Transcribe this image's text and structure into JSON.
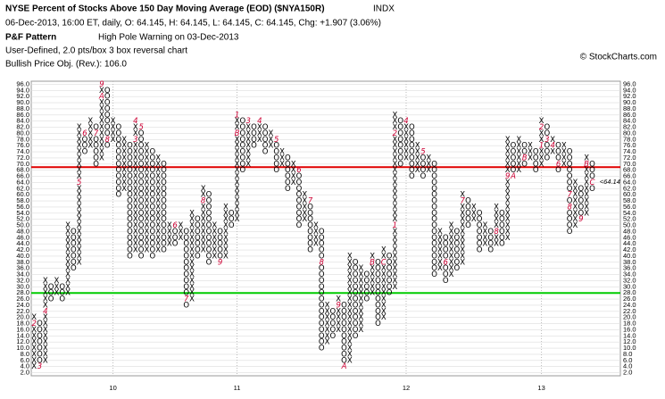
{
  "chart_data": {
    "type": "point-and-figure",
    "title": "NYSE Percent of Stocks Above 150 Day Moving Average (EOD) ($NYA150R)",
    "exchange": "INDX",
    "quote": "06-Dec-2013, 16:00 ET, daily, O: 64.145, H: 64.145, L: 64.145, C: 64.145, Chg: +1.907 (3.06%)",
    "pattern_label": "P&F Pattern",
    "pattern": "High Pole Warning on 03-Dec-2013",
    "settings": "User-Defined, 2.0 pts/box 3 box reversal chart",
    "objective": "Bullish Price Obj. (Rev.): 106.0",
    "watermark": "© StockCharts.com",
    "box_size": 2,
    "x_color": "#000000",
    "o_color": "#000000",
    "mark_color": "#cc0033",
    "ylim": [
      1,
      97
    ],
    "xlim": [
      -0.5,
      104
    ],
    "yticks": [
      {
        "value": 2,
        "label": "2.0"
      },
      {
        "value": 4,
        "label": "4.0"
      },
      {
        "value": 6,
        "label": "6.0"
      },
      {
        "value": 8,
        "label": "8.0"
      },
      {
        "value": 10,
        "label": "10.0"
      },
      {
        "value": 12,
        "label": "12.0"
      },
      {
        "value": 14,
        "label": "14.0"
      },
      {
        "value": 16,
        "label": "16.0"
      },
      {
        "value": 18,
        "label": "18.0"
      },
      {
        "value": 20,
        "label": "20.0"
      },
      {
        "value": 22,
        "label": "22.0"
      },
      {
        "value": 24,
        "label": "24.0"
      },
      {
        "value": 26,
        "label": "26.0"
      },
      {
        "value": 28,
        "label": "28.0"
      },
      {
        "value": 30,
        "label": "30.0"
      },
      {
        "value": 32,
        "label": "32.0"
      },
      {
        "value": 34,
        "label": "34.0"
      },
      {
        "value": 36,
        "label": "36.0"
      },
      {
        "value": 38,
        "label": "38.0"
      },
      {
        "value": 40,
        "label": "40.0"
      },
      {
        "value": 42,
        "label": "42.0"
      },
      {
        "value": 44,
        "label": "44.0"
      },
      {
        "value": 46,
        "label": "46.0"
      },
      {
        "value": 48,
        "label": "48.0"
      },
      {
        "value": 50,
        "label": "50.0"
      },
      {
        "value": 52,
        "label": "52.0"
      },
      {
        "value": 54,
        "label": "54.0"
      },
      {
        "value": 56,
        "label": "56.0"
      },
      {
        "value": 58,
        "label": "58.0"
      },
      {
        "value": 60,
        "label": "60.0"
      },
      {
        "value": 62,
        "label": "62.0"
      },
      {
        "value": 64,
        "label": "64.0"
      },
      {
        "value": 66,
        "label": "66.0"
      },
      {
        "value": 68,
        "label": "68.0"
      },
      {
        "value": 70,
        "label": "70.0"
      },
      {
        "value": 72,
        "label": "72.0"
      },
      {
        "value": 74,
        "label": "74.0"
      },
      {
        "value": 76,
        "label": "76.0"
      },
      {
        "value": 78,
        "label": "78.0"
      },
      {
        "value": 80,
        "label": "80.0"
      },
      {
        "value": 82,
        "label": "82.0"
      },
      {
        "value": 84,
        "label": "84.0"
      },
      {
        "value": 86,
        "label": "86.0"
      },
      {
        "value": 88,
        "label": "88.0"
      },
      {
        "value": 90,
        "label": "90.0"
      },
      {
        "value": 92,
        "label": "92.0"
      },
      {
        "value": 94,
        "label": "94.0"
      },
      {
        "value": 96,
        "label": "96.0"
      }
    ],
    "xticks": [
      {
        "value": 14,
        "label": "10"
      },
      {
        "value": 36,
        "label": "11"
      },
      {
        "value": 66,
        "label": "12"
      },
      {
        "value": 90,
        "label": "13"
      }
    ],
    "lines": [
      {
        "value": 69,
        "color": "#e00000"
      },
      {
        "value": 28,
        "color": "#00cc00"
      }
    ],
    "price_label": {
      "value": 64.14,
      "label": "<64.14"
    },
    "columns": [
      {
        "type": "X",
        "low": 4,
        "high": 20,
        "marks": [
          {
            "value": 18,
            "label": "2"
          }
        ]
      },
      {
        "type": "O",
        "low": 4,
        "high": 18,
        "marks": [
          {
            "value": 4,
            "label": "3"
          }
        ]
      },
      {
        "type": "X",
        "low": 6,
        "high": 32,
        "marks": [
          {
            "value": 22,
            "label": "4"
          }
        ]
      },
      {
        "type": "O",
        "low": 26,
        "high": 30
      },
      {
        "type": "X",
        "low": 28,
        "high": 32
      },
      {
        "type": "O",
        "low": 26,
        "high": 30
      },
      {
        "type": "X",
        "low": 28,
        "high": 50
      },
      {
        "type": "O",
        "low": 36,
        "high": 48
      },
      {
        "type": "X",
        "low": 38,
        "high": 82,
        "marks": [
          {
            "value": 64,
            "label": "5"
          }
        ]
      },
      {
        "type": "O",
        "low": 74,
        "high": 80,
        "marks": [
          {
            "value": 80,
            "label": "6"
          }
        ]
      },
      {
        "type": "X",
        "low": 76,
        "high": 84
      },
      {
        "type": "O",
        "low": 70,
        "high": 82,
        "marks": [
          {
            "value": 80,
            "label": "7"
          }
        ]
      },
      {
        "type": "X",
        "low": 72,
        "high": 96,
        "marks": [
          {
            "value": 96,
            "label": "9"
          },
          {
            "value": 92,
            "label": "A"
          }
        ]
      },
      {
        "type": "O",
        "low": 76,
        "high": 94,
        "marks": [
          {
            "value": 78,
            "label": "8"
          }
        ]
      },
      {
        "type": "X",
        "low": 78,
        "high": 84
      },
      {
        "type": "O",
        "low": 60,
        "high": 82
      },
      {
        "type": "X",
        "low": 62,
        "high": 78
      },
      {
        "type": "O",
        "low": 40,
        "high": 76
      },
      {
        "type": "X",
        "low": 42,
        "high": 84,
        "marks": [
          {
            "value": 84,
            "label": "4"
          },
          {
            "value": 78,
            "label": "3"
          }
        ]
      },
      {
        "type": "O",
        "low": 40,
        "high": 82,
        "marks": [
          {
            "value": 82,
            "label": "5"
          }
        ]
      },
      {
        "type": "X",
        "low": 42,
        "high": 76
      },
      {
        "type": "O",
        "low": 40,
        "high": 74
      },
      {
        "type": "X",
        "low": 42,
        "high": 72
      },
      {
        "type": "O",
        "low": 42,
        "high": 70
      },
      {
        "type": "X",
        "low": 44,
        "high": 50
      },
      {
        "type": "O",
        "low": 44,
        "high": 50,
        "marks": [
          {
            "value": 50,
            "label": "6"
          }
        ]
      },
      {
        "type": "X",
        "low": 46,
        "high": 50
      },
      {
        "type": "O",
        "low": 24,
        "high": 48,
        "marks": [
          {
            "value": 26,
            "label": "7"
          }
        ]
      },
      {
        "type": "X",
        "low": 26,
        "high": 54
      },
      {
        "type": "O",
        "low": 40,
        "high": 52
      },
      {
        "type": "X",
        "low": 42,
        "high": 62,
        "marks": [
          {
            "value": 58,
            "label": "8"
          }
        ]
      },
      {
        "type": "O",
        "low": 38,
        "high": 60
      },
      {
        "type": "X",
        "low": 40,
        "high": 50
      },
      {
        "type": "O",
        "low": 38,
        "high": 48,
        "marks": [
          {
            "value": 38,
            "label": "9"
          }
        ]
      },
      {
        "type": "X",
        "low": 40,
        "high": 56
      },
      {
        "type": "O",
        "low": 50,
        "high": 54
      },
      {
        "type": "X",
        "low": 52,
        "high": 86,
        "marks": [
          {
            "value": 86,
            "label": "1"
          },
          {
            "value": 80,
            "label": "B"
          }
        ]
      },
      {
        "type": "O",
        "low": 68,
        "high": 84
      },
      {
        "type": "X",
        "low": 70,
        "high": 84,
        "marks": [
          {
            "value": 84,
            "label": "3"
          }
        ]
      },
      {
        "type": "O",
        "low": 76,
        "high": 82
      },
      {
        "type": "X",
        "low": 78,
        "high": 84,
        "marks": [
          {
            "value": 84,
            "label": "4"
          }
        ]
      },
      {
        "type": "O",
        "low": 74,
        "high": 82
      },
      {
        "type": "X",
        "low": 76,
        "high": 80
      },
      {
        "type": "O",
        "low": 68,
        "high": 78,
        "marks": [
          {
            "value": 78,
            "label": "5"
          }
        ]
      },
      {
        "type": "X",
        "low": 70,
        "high": 74
      },
      {
        "type": "O",
        "low": 62,
        "high": 72
      },
      {
        "type": "X",
        "low": 64,
        "high": 70
      },
      {
        "type": "O",
        "low": 50,
        "high": 68,
        "marks": [
          {
            "value": 68,
            "label": "6"
          }
        ]
      },
      {
        "type": "X",
        "low": 52,
        "high": 60
      },
      {
        "type": "O",
        "low": 42,
        "high": 58,
        "marks": [
          {
            "value": 58,
            "label": "7"
          }
        ]
      },
      {
        "type": "X",
        "low": 44,
        "high": 50
      },
      {
        "type": "O",
        "low": 10,
        "high": 48,
        "marks": [
          {
            "value": 38,
            "label": "8"
          }
        ]
      },
      {
        "type": "X",
        "low": 12,
        "high": 24
      },
      {
        "type": "O",
        "low": 14,
        "high": 22
      },
      {
        "type": "X",
        "low": 16,
        "high": 26,
        "marks": [
          {
            "value": 24,
            "label": "9"
          }
        ]
      },
      {
        "type": "O",
        "low": 4,
        "high": 24,
        "marks": [
          {
            "value": 4,
            "label": "A"
          }
        ]
      },
      {
        "type": "X",
        "low": 6,
        "high": 40
      },
      {
        "type": "O",
        "low": 14,
        "high": 38
      },
      {
        "type": "X",
        "low": 16,
        "high": 36
      },
      {
        "type": "O",
        "low": 26,
        "high": 34
      },
      {
        "type": "X",
        "low": 28,
        "high": 40,
        "marks": [
          {
            "value": 38,
            "label": "B"
          }
        ]
      },
      {
        "type": "O",
        "low": 18,
        "high": 38
      },
      {
        "type": "X",
        "low": 20,
        "high": 42,
        "marks": [
          {
            "value": 38,
            "label": "C"
          }
        ]
      },
      {
        "type": "O",
        "low": 28,
        "high": 40
      },
      {
        "type": "X",
        "low": 30,
        "high": 86,
        "marks": [
          {
            "value": 50,
            "label": "1"
          },
          {
            "value": 80,
            "label": "2"
          }
        ]
      },
      {
        "type": "O",
        "low": 70,
        "high": 84
      },
      {
        "type": "X",
        "low": 72,
        "high": 84,
        "marks": [
          {
            "value": 84,
            "label": "4"
          }
        ]
      },
      {
        "type": "O",
        "low": 66,
        "high": 82
      },
      {
        "type": "X",
        "low": 68,
        "high": 76
      },
      {
        "type": "O",
        "low": 66,
        "high": 74,
        "marks": [
          {
            "value": 74,
            "label": "5"
          }
        ]
      },
      {
        "type": "X",
        "low": 68,
        "high": 72
      },
      {
        "type": "O",
        "low": 34,
        "high": 70
      },
      {
        "type": "X",
        "low": 36,
        "high": 48
      },
      {
        "type": "O",
        "low": 32,
        "high": 46,
        "marks": [
          {
            "value": 38,
            "label": "6"
          }
        ]
      },
      {
        "type": "X",
        "low": 34,
        "high": 50
      },
      {
        "type": "O",
        "low": 36,
        "high": 48
      },
      {
        "type": "X",
        "low": 38,
        "high": 60,
        "marks": [
          {
            "value": 58,
            "label": "7"
          }
        ]
      },
      {
        "type": "O",
        "low": 50,
        "high": 58
      },
      {
        "type": "X",
        "low": 52,
        "high": 56
      },
      {
        "type": "O",
        "low": 42,
        "high": 54
      },
      {
        "type": "X",
        "low": 44,
        "high": 50
      },
      {
        "type": "O",
        "low": 42,
        "high": 48
      },
      {
        "type": "X",
        "low": 44,
        "high": 56,
        "marks": [
          {
            "value": 48,
            "label": "8"
          }
        ]
      },
      {
        "type": "O",
        "low": 44,
        "high": 54
      },
      {
        "type": "X",
        "low": 46,
        "high": 78,
        "marks": [
          {
            "value": 66,
            "label": "9"
          }
        ]
      },
      {
        "type": "O",
        "low": 66,
        "high": 76,
        "marks": [
          {
            "value": 66,
            "label": "A"
          }
        ]
      },
      {
        "type": "X",
        "low": 68,
        "high": 78
      },
      {
        "type": "O",
        "low": 70,
        "high": 76,
        "marks": [
          {
            "value": 72,
            "label": "B"
          }
        ]
      },
      {
        "type": "X",
        "low": 72,
        "high": 76
      },
      {
        "type": "O",
        "low": 68,
        "high": 74
      },
      {
        "type": "X",
        "low": 70,
        "high": 84,
        "marks": [
          {
            "value": 76,
            "label": "1"
          },
          {
            "value": 82,
            "label": "2"
          }
        ]
      },
      {
        "type": "O",
        "low": 72,
        "high": 82,
        "marks": [
          {
            "value": 78,
            "label": "3"
          }
        ]
      },
      {
        "type": "X",
        "low": 74,
        "high": 78,
        "marks": [
          {
            "value": 76,
            "label": "4"
          }
        ]
      },
      {
        "type": "O",
        "low": 68,
        "high": 76,
        "marks": [
          {
            "value": 70,
            "label": "6"
          }
        ]
      },
      {
        "type": "X",
        "low": 70,
        "high": 76
      },
      {
        "type": "O",
        "low": 48,
        "high": 74,
        "marks": [
          {
            "value": 60,
            "label": "7"
          },
          {
            "value": 56,
            "label": "8"
          }
        ]
      },
      {
        "type": "X",
        "low": 50,
        "high": 64
      },
      {
        "type": "O",
        "low": 52,
        "high": 62,
        "marks": [
          {
            "value": 52,
            "label": "9"
          }
        ]
      },
      {
        "type": "X",
        "low": 54,
        "high": 72,
        "marks": [
          {
            "value": 70,
            "label": "B"
          }
        ]
      },
      {
        "type": "O",
        "low": 62,
        "high": 70,
        "marks": [
          {
            "value": 64,
            "label": "C"
          }
        ]
      }
    ]
  }
}
